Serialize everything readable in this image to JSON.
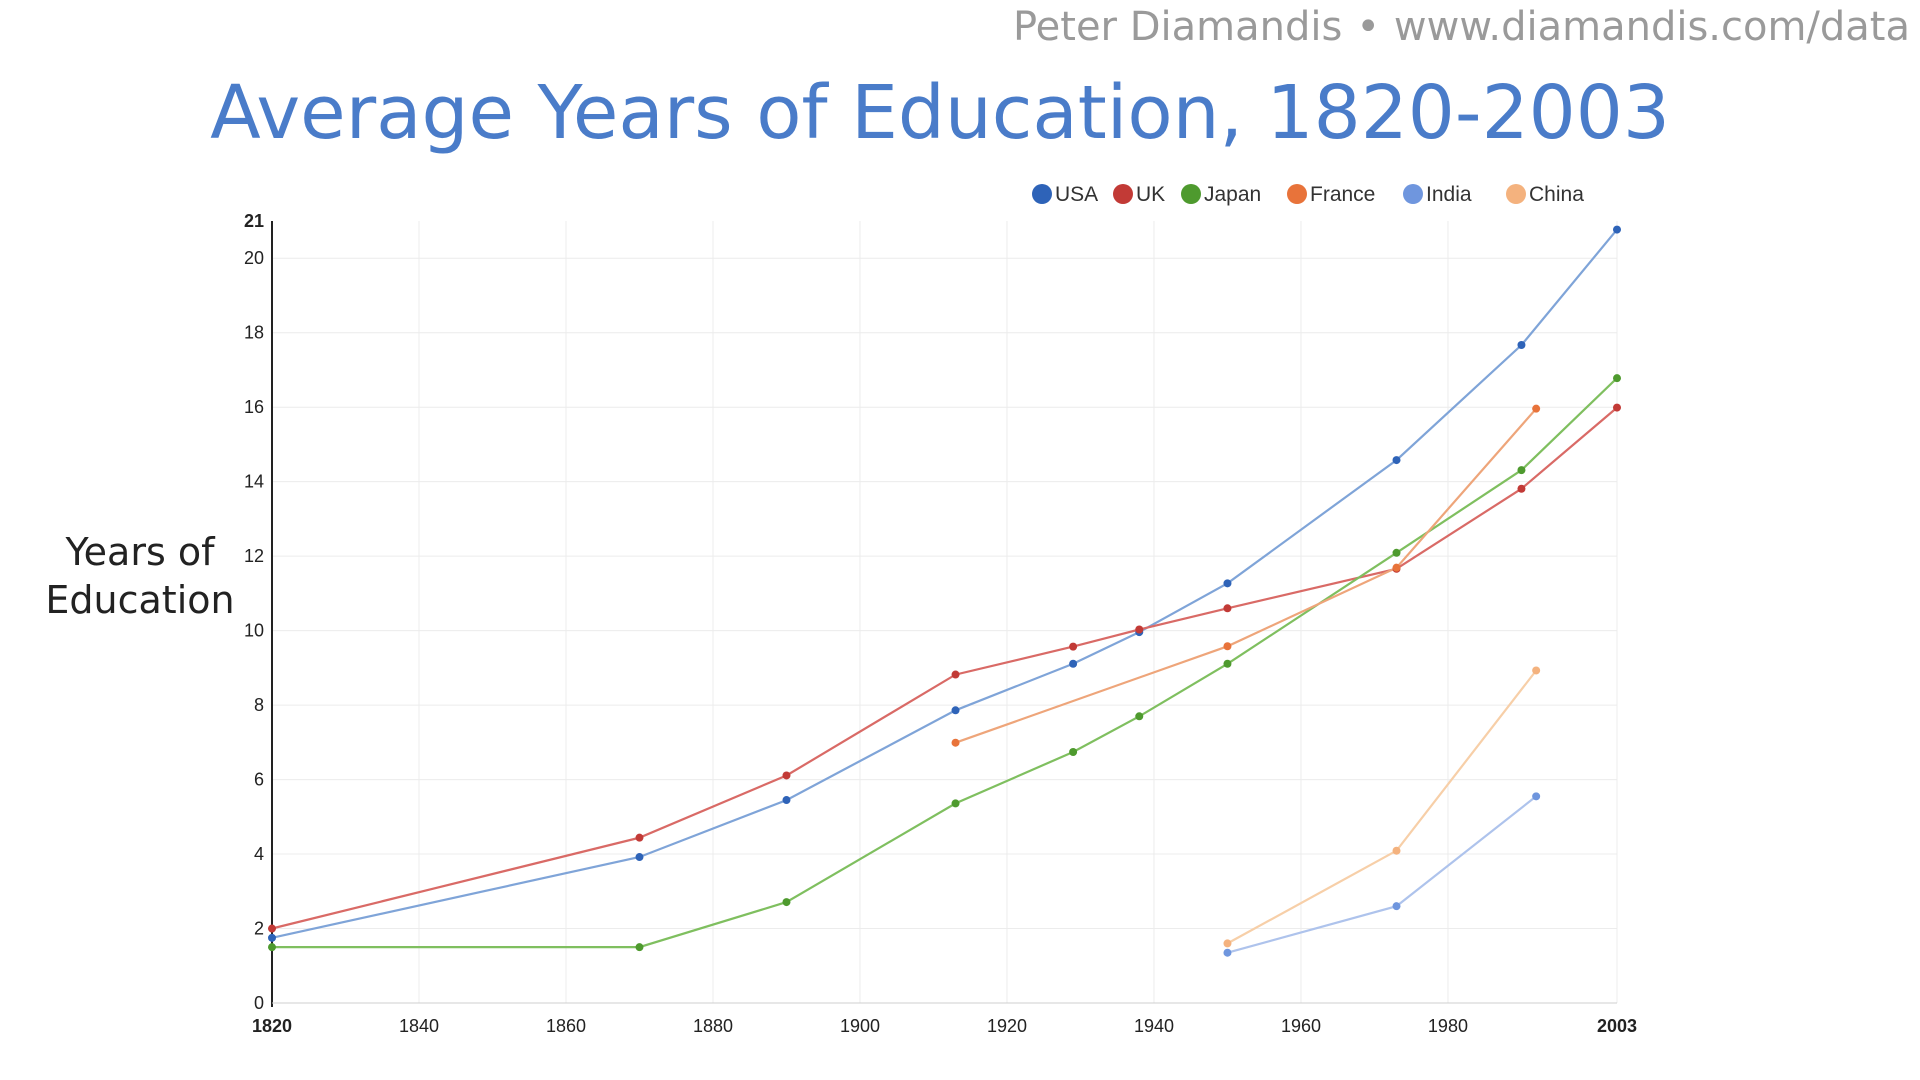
{
  "attribution": {
    "author": "Peter Diamandis",
    "separator": "•",
    "url": "www.diamandis.com/data"
  },
  "chart_data": {
    "type": "line",
    "title": "Average Years of Education, 1820-2003",
    "ylabel": "Years of\nEducation",
    "xlabel": "",
    "xlim": [
      1820,
      2003
    ],
    "ylim": [
      0,
      21
    ],
    "x_ticks": [
      "1820",
      "1840",
      "1860",
      "1880",
      "1900",
      "1920",
      "1940",
      "1960",
      "1980",
      "2003"
    ],
    "x_tick_values": [
      1820,
      1840,
      1860,
      1880,
      1900,
      1920,
      1940,
      1960,
      1980,
      2003
    ],
    "y_ticks": [
      "0",
      "2",
      "4",
      "6",
      "8",
      "10",
      "12",
      "14",
      "16",
      "18",
      "20",
      "21"
    ],
    "y_tick_values": [
      0,
      2,
      4,
      6,
      8,
      10,
      12,
      14,
      16,
      18,
      20,
      21
    ],
    "bold_ticks": [
      "1820",
      "2003",
      "21"
    ],
    "grid": true,
    "legend_position": "top-right",
    "series": [
      {
        "name": "USA",
        "color": "#2e63b8",
        "line_color": "#7fa4d8",
        "points": [
          [
            1820,
            1.75
          ],
          [
            1870,
            3.92
          ],
          [
            1890,
            5.45
          ],
          [
            1913,
            7.86
          ],
          [
            1929,
            9.11
          ],
          [
            1938,
            9.96
          ],
          [
            1950,
            11.27
          ],
          [
            1973,
            14.58
          ],
          [
            1990,
            17.67
          ],
          [
            2003,
            20.77
          ]
        ]
      },
      {
        "name": "UK",
        "color": "#c23a36",
        "line_color": "#d96a66",
        "points": [
          [
            1820,
            2.0
          ],
          [
            1870,
            4.44
          ],
          [
            1890,
            6.11
          ],
          [
            1913,
            8.82
          ],
          [
            1929,
            9.57
          ],
          [
            1938,
            10.03
          ],
          [
            1950,
            10.6
          ],
          [
            1973,
            11.66
          ],
          [
            1990,
            13.81
          ],
          [
            2003,
            15.99
          ]
        ]
      },
      {
        "name": "Japan",
        "color": "#4e9a2e",
        "line_color": "#7fbf5f",
        "points": [
          [
            1820,
            1.5
          ],
          [
            1870,
            1.5
          ],
          [
            1890,
            2.71
          ],
          [
            1913,
            5.36
          ],
          [
            1929,
            6.74
          ],
          [
            1938,
            7.7
          ],
          [
            1950,
            9.11
          ],
          [
            1973,
            12.09
          ],
          [
            1990,
            14.31
          ],
          [
            2003,
            16.78
          ]
        ]
      },
      {
        "name": "France",
        "color": "#e8733a",
        "line_color": "#eea57a",
        "points": [
          [
            1913,
            6.99
          ],
          [
            1950,
            9.58
          ],
          [
            1973,
            11.69
          ],
          [
            1992,
            15.96
          ]
        ]
      },
      {
        "name": "India",
        "color": "#6f96de",
        "line_color": "#aec3ec",
        "points": [
          [
            1950,
            1.35
          ],
          [
            1973,
            2.6
          ],
          [
            1992,
            5.55
          ]
        ]
      },
      {
        "name": "China",
        "color": "#f4b27e",
        "line_color": "#f7cfa8",
        "points": [
          [
            1950,
            1.6
          ],
          [
            1973,
            4.09
          ],
          [
            1992,
            8.93
          ]
        ]
      }
    ]
  }
}
